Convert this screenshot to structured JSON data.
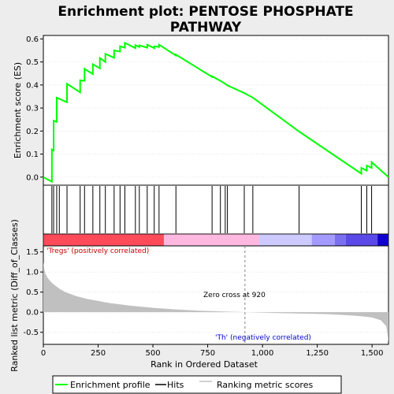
{
  "chart_data": {
    "type": "line",
    "title": "Enrichment plot: PENTOSE PHOSPHATE PATHWAY",
    "title_lines": [
      "Enrichment plot: PENTOSE PHOSPHATE",
      "PATHWAY"
    ],
    "colors": {
      "background": "#ededed",
      "plot_bg": "#ffffff",
      "es_line": "#00ff00",
      "hits": "#000000",
      "metric_fill": "#c0c0c0",
      "pos_label": "#cc0000",
      "neg_label": "#0000cc",
      "zero_cross": "#808080"
    },
    "es_panel": {
      "ylabel": "Enrichment score (ES)",
      "yticks": [
        0.0,
        0.1,
        0.2,
        0.3,
        0.4,
        0.5,
        0.6
      ],
      "ylim": [
        -0.035,
        0.615
      ],
      "xlim": [
        0,
        1575
      ],
      "hits": [
        39,
        47,
        61,
        73,
        108,
        168,
        188,
        226,
        258,
        283,
        323,
        350,
        372,
        420,
        438,
        474,
        506,
        528,
        605,
        770,
        808,
        830,
        840,
        917,
        956,
        1167,
        1451,
        1476,
        1498
      ],
      "es_points": [
        [
          0,
          0.0
        ],
        [
          39,
          -0.02
        ],
        [
          39,
          0.12
        ],
        [
          47,
          0.115
        ],
        [
          47,
          0.245
        ],
        [
          61,
          0.24
        ],
        [
          61,
          0.345
        ],
        [
          96,
          0.33
        ],
        [
          108,
          0.325
        ],
        [
          108,
          0.405
        ],
        [
          168,
          0.368
        ],
        [
          168,
          0.42
        ],
        [
          188,
          0.418
        ],
        [
          188,
          0.47
        ],
        [
          226,
          0.447
        ],
        [
          226,
          0.49
        ],
        [
          258,
          0.472
        ],
        [
          258,
          0.517
        ],
        [
          283,
          0.5
        ],
        [
          283,
          0.535
        ],
        [
          323,
          0.518
        ],
        [
          323,
          0.55
        ],
        [
          350,
          0.545
        ],
        [
          350,
          0.568
        ],
        [
          372,
          0.562
        ],
        [
          372,
          0.583
        ],
        [
          420,
          0.56
        ],
        [
          420,
          0.573
        ],
        [
          438,
          0.565
        ],
        [
          438,
          0.572
        ],
        [
          474,
          0.562
        ],
        [
          474,
          0.575
        ],
        [
          506,
          0.56
        ],
        [
          506,
          0.568
        ],
        [
          528,
          0.565
        ],
        [
          528,
          0.575
        ],
        [
          605,
          0.528
        ],
        [
          605,
          0.532
        ],
        [
          770,
          0.435
        ],
        [
          770,
          0.438
        ],
        [
          808,
          0.418
        ],
        [
          808,
          0.418
        ],
        [
          830,
          0.405
        ],
        [
          840,
          0.398
        ],
        [
          917,
          0.365
        ],
        [
          956,
          0.345
        ],
        [
          1167,
          0.198
        ],
        [
          1451,
          0.015
        ],
        [
          1451,
          0.04
        ],
        [
          1476,
          0.028
        ],
        [
          1476,
          0.05
        ],
        [
          1498,
          0.04
        ],
        [
          1498,
          0.065
        ],
        [
          1575,
          0.0
        ]
      ]
    },
    "heat_bar": {
      "segments": [
        {
          "from": 0,
          "to": 550,
          "color": "#ff4a5a"
        },
        {
          "from": 550,
          "to": 985,
          "color": "#ffb8e0"
        },
        {
          "from": 985,
          "to": 1225,
          "color": "#cccaff"
        },
        {
          "from": 1225,
          "to": 1330,
          "color": "#a39aff"
        },
        {
          "from": 1330,
          "to": 1380,
          "color": "#7a6fef"
        },
        {
          "from": 1380,
          "to": 1525,
          "color": "#5b4ae8"
        },
        {
          "from": 1525,
          "to": 1575,
          "color": "#1000d0"
        }
      ]
    },
    "metric_panel": {
      "ylabel": "Ranked list metric (Diff_of_Classes)",
      "yticks": [
        -0.5,
        0.0,
        0.5,
        1.0,
        1.5
      ],
      "ylim": [
        -0.8,
        1.65
      ],
      "metric_points": [
        [
          0,
          1.25
        ],
        [
          5,
          1.05
        ],
        [
          10,
          0.95
        ],
        [
          20,
          0.85
        ],
        [
          35,
          0.75
        ],
        [
          50,
          0.68
        ],
        [
          75,
          0.58
        ],
        [
          100,
          0.5
        ],
        [
          150,
          0.4
        ],
        [
          200,
          0.33
        ],
        [
          250,
          0.28
        ],
        [
          300,
          0.23
        ],
        [
          400,
          0.16
        ],
        [
          500,
          0.11
        ],
        [
          600,
          0.07
        ],
        [
          700,
          0.04
        ],
        [
          800,
          0.02
        ],
        [
          900,
          0.005
        ],
        [
          920,
          0.0
        ],
        [
          1000,
          -0.01
        ],
        [
          1100,
          -0.025
        ],
        [
          1200,
          -0.035
        ],
        [
          1300,
          -0.05
        ],
        [
          1400,
          -0.08
        ],
        [
          1450,
          -0.1
        ],
        [
          1500,
          -0.13
        ],
        [
          1540,
          -0.2
        ],
        [
          1565,
          -0.35
        ],
        [
          1575,
          -0.75
        ]
      ],
      "zero_cross_x": 920,
      "zero_cross_label": "Zero cross at 920",
      "pos_label": "'Tregs' (positively correlated)",
      "neg_label": "'Th' (negatively correlated)"
    },
    "xaxis": {
      "xlabel": "Rank in Ordered Dataset",
      "xticks": [
        0,
        250,
        500,
        750,
        1000,
        1250,
        1500
      ]
    },
    "legend": {
      "placement": "bottom",
      "entries": [
        "Enrichment profile",
        "Hits",
        "Ranking metric scores"
      ]
    }
  }
}
